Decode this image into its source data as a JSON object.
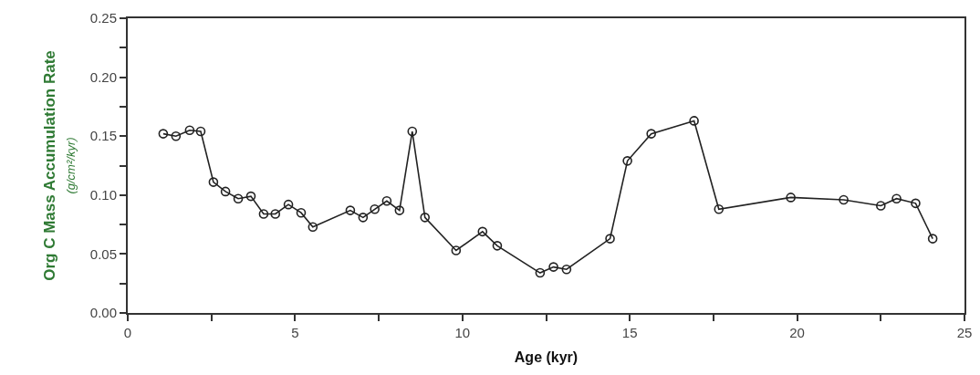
{
  "chart_data": {
    "type": "line",
    "xlabel": "Age (kyr)",
    "ylabel": "Org C Mass Accumulation Rate\n(g/cm²/kyr)",
    "marker": "circle",
    "line_style": "solid",
    "grid": false,
    "legend": false,
    "xlim": [
      0,
      25
    ],
    "xticks": [
      0,
      {
        "value": 2.5,
        "label": null
      },
      5,
      {
        "value": 7.5,
        "label": null
      },
      10,
      {
        "value": 12.5,
        "label": null
      },
      15,
      {
        "value": 17.5,
        "label": null
      },
      20,
      {
        "value": 22.5,
        "label": null
      },
      25
    ],
    "ylim": [
      0,
      0.25
    ],
    "yticks": [
      {
        "value": 0,
        "label": "0.00"
      },
      {
        "value": 0.025,
        "label": null
      },
      {
        "value": 0.05,
        "label": "0.05"
      },
      {
        "value": 0.075,
        "label": null
      },
      {
        "value": 0.1,
        "label": "0.10"
      },
      {
        "value": 0.125,
        "label": null
      },
      {
        "value": 0.15,
        "label": "0.15"
      },
      {
        "value": 0.175,
        "label": null
      },
      {
        "value": 0.2,
        "label": "0.20"
      },
      {
        "value": 0.225,
        "label": null
      },
      {
        "value": 0.25,
        "label": "0.25"
      }
    ],
    "series": [
      {
        "color": "#222222",
        "x": [
          1.06,
          1.44,
          1.85,
          2.18,
          2.56,
          2.92,
          3.3,
          3.68,
          4.06,
          4.41,
          4.8,
          5.18,
          5.53,
          6.65,
          7.03,
          7.38,
          7.74,
          8.12,
          8.5,
          8.88,
          9.81,
          10.6,
          11.04,
          12.32,
          12.72,
          13.11,
          14.41,
          14.93,
          15.64,
          16.92,
          17.66,
          19.81,
          21.39,
          22.5,
          22.97,
          23.54,
          24.05
        ],
        "values": [
          0.152,
          0.15,
          0.155,
          0.154,
          0.111,
          0.103,
          0.097,
          0.099,
          0.084,
          0.084,
          0.092,
          0.085,
          0.073,
          0.087,
          0.081,
          0.088,
          0.095,
          0.087,
          0.154,
          0.081,
          0.053,
          0.069,
          0.057,
          0.034,
          0.039,
          0.037,
          0.063,
          0.129,
          0.152,
          0.163,
          0.088,
          0.098,
          0.096,
          0.091,
          0.097,
          0.093,
          0.063
        ]
      }
    ]
  }
}
